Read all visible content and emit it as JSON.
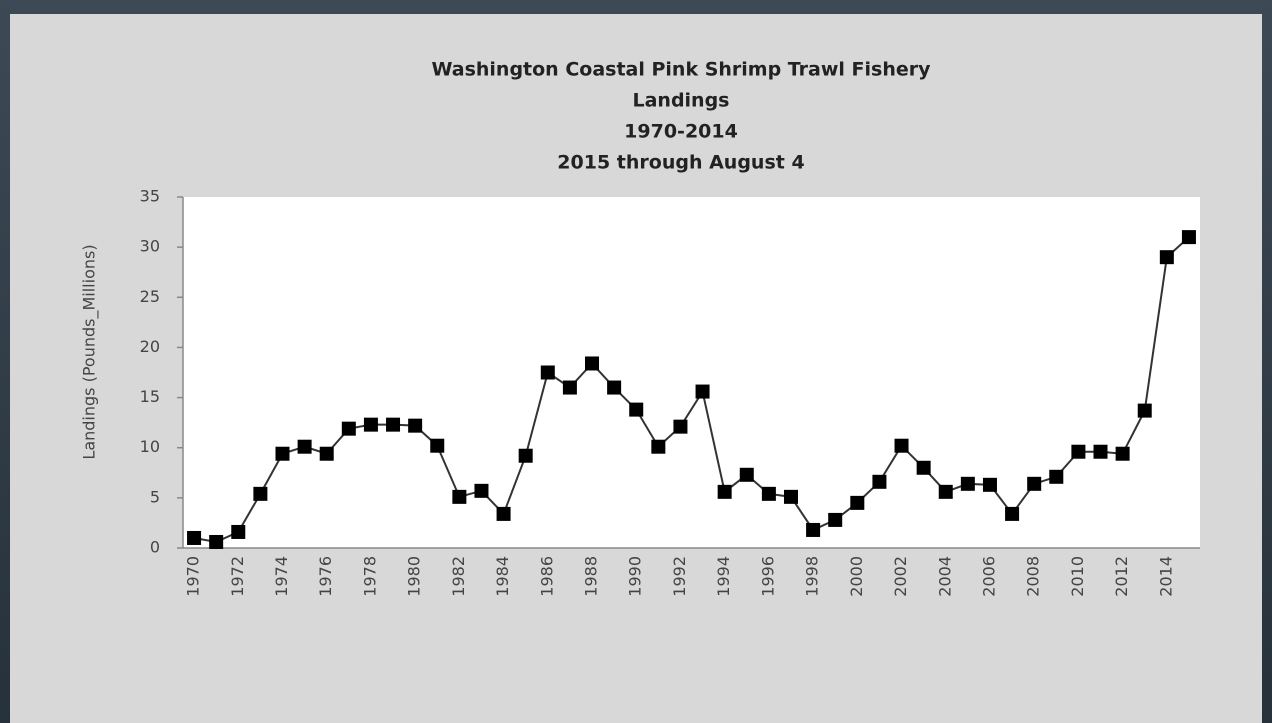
{
  "chart_data": {
    "type": "line",
    "title": [
      "Washington Coastal Pink Shrimp Trawl Fishery",
      "Landings",
      "1970-2014",
      "2015 through August 4"
    ],
    "y_label": "Landings (Pounds_Millions)",
    "categories": [
      "1970",
      null,
      "1972",
      null,
      "1974",
      null,
      "1976",
      null,
      "1978",
      null,
      "1980",
      null,
      "1982",
      null,
      "1984",
      null,
      "1986",
      null,
      "1988",
      null,
      "1990",
      null,
      "1992",
      null,
      "1994",
      null,
      "1996",
      null,
      "1998",
      null,
      "2000",
      null,
      "2002",
      null,
      "2004",
      null,
      "2006",
      null,
      "2008",
      null,
      "2010",
      null,
      "2012",
      null,
      "2014",
      null
    ],
    "values": [
      1.0,
      0.6,
      1.6,
      5.4,
      9.4,
      10.1,
      9.4,
      11.9,
      12.3,
      12.3,
      12.2,
      10.2,
      5.1,
      5.7,
      3.4,
      9.2,
      17.5,
      16.0,
      18.4,
      16.0,
      13.8,
      10.1,
      12.1,
      15.6,
      5.6,
      7.3,
      5.4,
      5.1,
      1.8,
      2.8,
      4.5,
      6.6,
      10.2,
      8.0,
      5.6,
      6.4,
      6.3,
      3.4,
      6.4,
      7.1,
      9.6,
      9.6,
      9.4,
      13.7,
      29.0,
      31.0
    ],
    "color": "#000000",
    "ylim": [
      0,
      35
    ],
    "yticks": [
      0,
      5,
      10,
      15,
      20,
      25,
      30,
      35
    ]
  }
}
